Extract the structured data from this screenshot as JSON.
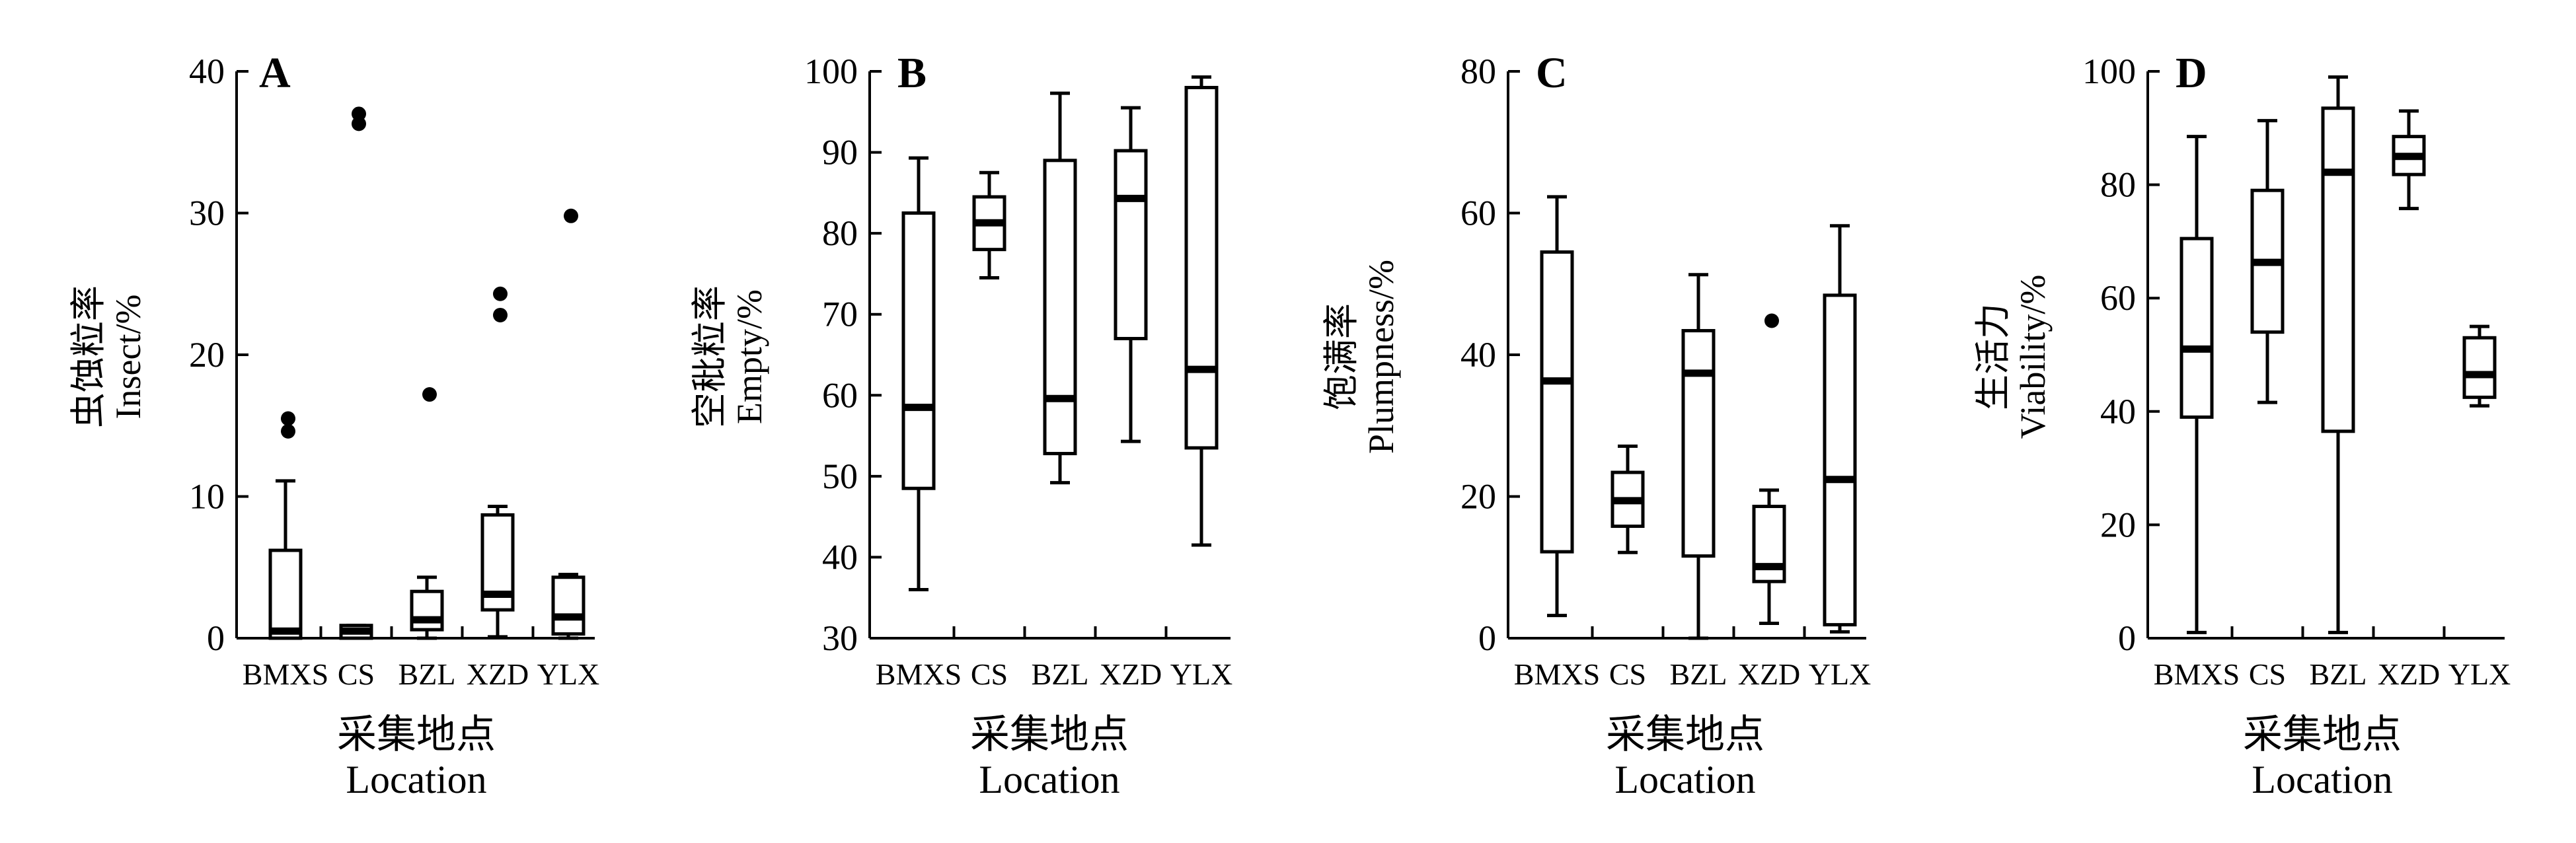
{
  "figure": {
    "xlabel_cn": "采集地点",
    "xlabel_en": "Location"
  },
  "chart_data": [
    {
      "type": "box",
      "panel": "A",
      "ylabel_cn": "虫蚀粒率",
      "ylabel_en": "Insect/%",
      "categories": [
        "BMXS",
        "CS",
        "BZL",
        "XZD",
        "YLX"
      ],
      "ylim": [
        0,
        40
      ],
      "yticks": [
        0,
        10,
        20,
        30,
        40
      ],
      "boxes": [
        {
          "min": 0,
          "q1": 0,
          "median": 0.5,
          "q3": 6.2,
          "max": 11.1
        },
        {
          "min": 0,
          "q1": 0,
          "median": 0.5,
          "q3": 0.9,
          "max": 0.9
        },
        {
          "min": 0,
          "q1": 0.6,
          "median": 1.3,
          "q3": 3.3,
          "max": 4.3
        },
        {
          "min": 0.1,
          "q1": 2.0,
          "median": 3.1,
          "q3": 8.7,
          "max": 9.3
        },
        {
          "min": 0,
          "q1": 0.3,
          "median": 1.5,
          "q3": 4.3,
          "max": 4.5
        }
      ],
      "outliers": [
        {
          "category": "BMXS",
          "value": 15.5
        },
        {
          "category": "BMXS",
          "value": 14.6
        },
        {
          "category": "CS",
          "value": 37.0
        },
        {
          "category": "CS",
          "value": 36.3
        },
        {
          "category": "BZL",
          "value": 17.2
        },
        {
          "category": "XZD",
          "value": 24.3
        },
        {
          "category": "XZD",
          "value": 22.8
        },
        {
          "category": "YLX",
          "value": 29.8
        }
      ]
    },
    {
      "type": "box",
      "panel": "B",
      "ylabel_cn": "空秕粒率",
      "ylabel_en": "Empty/%",
      "categories": [
        "BMXS",
        "CS",
        "BZL",
        "XZD",
        "YLX"
      ],
      "ylim": [
        30,
        100
      ],
      "yticks": [
        30,
        40,
        50,
        60,
        70,
        80,
        90,
        100
      ],
      "boxes": [
        {
          "min": 36.0,
          "q1": 48.5,
          "median": 58.5,
          "q3": 82.5,
          "max": 89.3
        },
        {
          "min": 74.5,
          "q1": 78.0,
          "median": 81.3,
          "q3": 84.5,
          "max": 87.5
        },
        {
          "min": 49.2,
          "q1": 52.8,
          "median": 59.6,
          "q3": 89.0,
          "max": 97.3
        },
        {
          "min": 54.3,
          "q1": 67.0,
          "median": 84.3,
          "q3": 90.2,
          "max": 95.5
        },
        {
          "min": 41.5,
          "q1": 53.5,
          "median": 63.2,
          "q3": 98.0,
          "max": 99.3
        }
      ],
      "outliers": []
    },
    {
      "type": "box",
      "panel": "C",
      "ylabel_cn": "饱满率",
      "ylabel_en": "Plumpness/%",
      "categories": [
        "BMXS",
        "CS",
        "BZL",
        "XZD",
        "YLX"
      ],
      "ylim": [
        0,
        80
      ],
      "yticks": [
        0,
        20,
        40,
        60,
        80
      ],
      "boxes": [
        {
          "min": 3.2,
          "q1": 12.2,
          "median": 36.3,
          "q3": 54.5,
          "max": 62.3
        },
        {
          "min": 12.1,
          "q1": 15.8,
          "median": 19.4,
          "q3": 23.4,
          "max": 27.1
        },
        {
          "min": 0,
          "q1": 11.6,
          "median": 37.4,
          "q3": 43.4,
          "max": 51.3
        },
        {
          "min": 2.1,
          "q1": 8.0,
          "median": 10.1,
          "q3": 18.6,
          "max": 20.9
        },
        {
          "min": 0.9,
          "q1": 1.9,
          "median": 22.4,
          "q3": 48.4,
          "max": 58.2
        }
      ],
      "outliers": [
        {
          "category": "XZD",
          "value": 44.8
        }
      ]
    },
    {
      "type": "box",
      "panel": "D",
      "ylabel_cn": "生活力",
      "ylabel_en": "Viability/%",
      "categories": [
        "BMXS",
        "CS",
        "BZL",
        "XZD",
        "YLX"
      ],
      "ylim": [
        0,
        100
      ],
      "yticks": [
        0,
        20,
        40,
        60,
        80,
        100
      ],
      "boxes": [
        {
          "min": 1.0,
          "q1": 39.0,
          "median": 51.0,
          "q3": 70.5,
          "max": 88.5
        },
        {
          "min": 41.6,
          "q1": 54.0,
          "median": 66.3,
          "q3": 79.0,
          "max": 91.3
        },
        {
          "min": 1.0,
          "q1": 36.5,
          "median": 82.2,
          "q3": 93.5,
          "max": 99.0
        },
        {
          "min": 75.8,
          "q1": 81.8,
          "median": 85.0,
          "q3": 88.5,
          "max": 93.0
        },
        {
          "min": 41.0,
          "q1": 42.5,
          "median": 46.5,
          "q3": 53.0,
          "max": 55.0
        }
      ],
      "outliers": []
    }
  ]
}
